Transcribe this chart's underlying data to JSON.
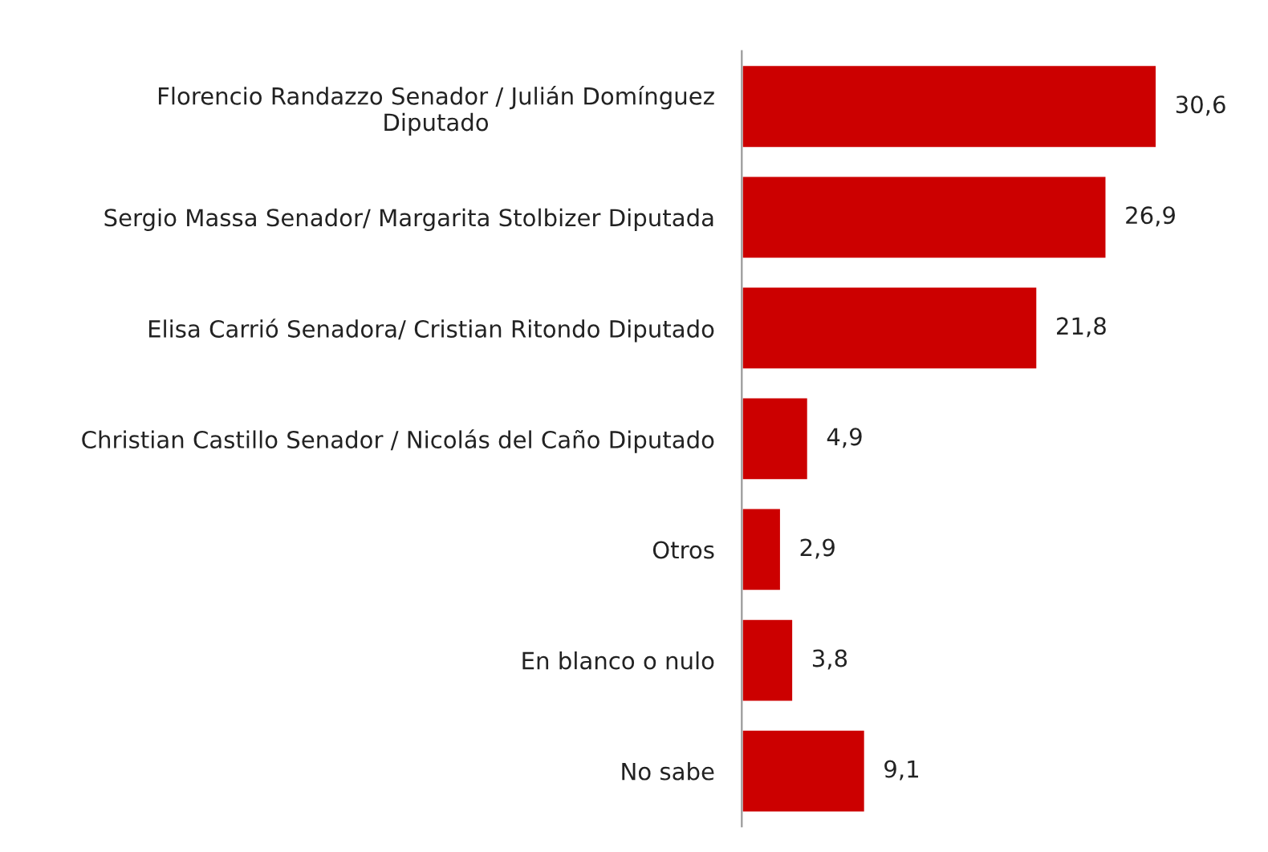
{
  "chart_data": {
    "type": "bar",
    "orientation": "horizontal",
    "categories": [
      "Florencio Randazzo Senador / Julián Domínguez\nDiputado",
      "Sergio Massa Senador/ Margarita Stolbizer Diputada",
      "Elisa Carrió Senadora/ Cristian Ritondo Diputado",
      "Christian Castillo Senador / Nicolás del Caño Diputado",
      "Otros",
      "En blanco o nulo",
      "No sabe"
    ],
    "values": [
      30.6,
      26.9,
      21.8,
      4.9,
      2.9,
      3.8,
      9.1
    ],
    "value_labels": [
      "30,6",
      "26,9",
      "21,8",
      "4,9",
      "2,9",
      "3,8",
      "9,1"
    ],
    "color": "#cc0000",
    "grid": false,
    "legend": false
  }
}
